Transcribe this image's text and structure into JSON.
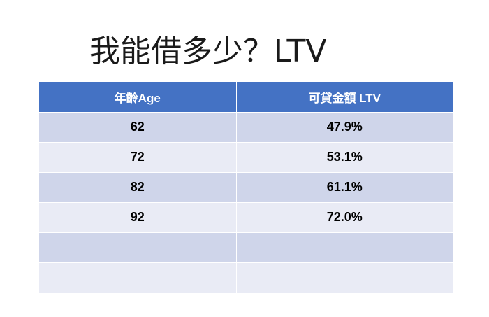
{
  "slide": {
    "title": "我能借多少？LTV"
  },
  "table": {
    "headers": [
      "年齡Age",
      "可貸金額 LTV"
    ],
    "rows": [
      [
        "62",
        "47.9%"
      ],
      [
        "72",
        "53.1%"
      ],
      [
        "82",
        "61.1%"
      ],
      [
        "92",
        "72.0%"
      ],
      [
        "",
        ""
      ],
      [
        "",
        ""
      ]
    ],
    "colors": {
      "header_bg": "#4472c4",
      "row_odd_bg": "#cfd5ea",
      "row_even_bg": "#e9ebf5"
    }
  }
}
